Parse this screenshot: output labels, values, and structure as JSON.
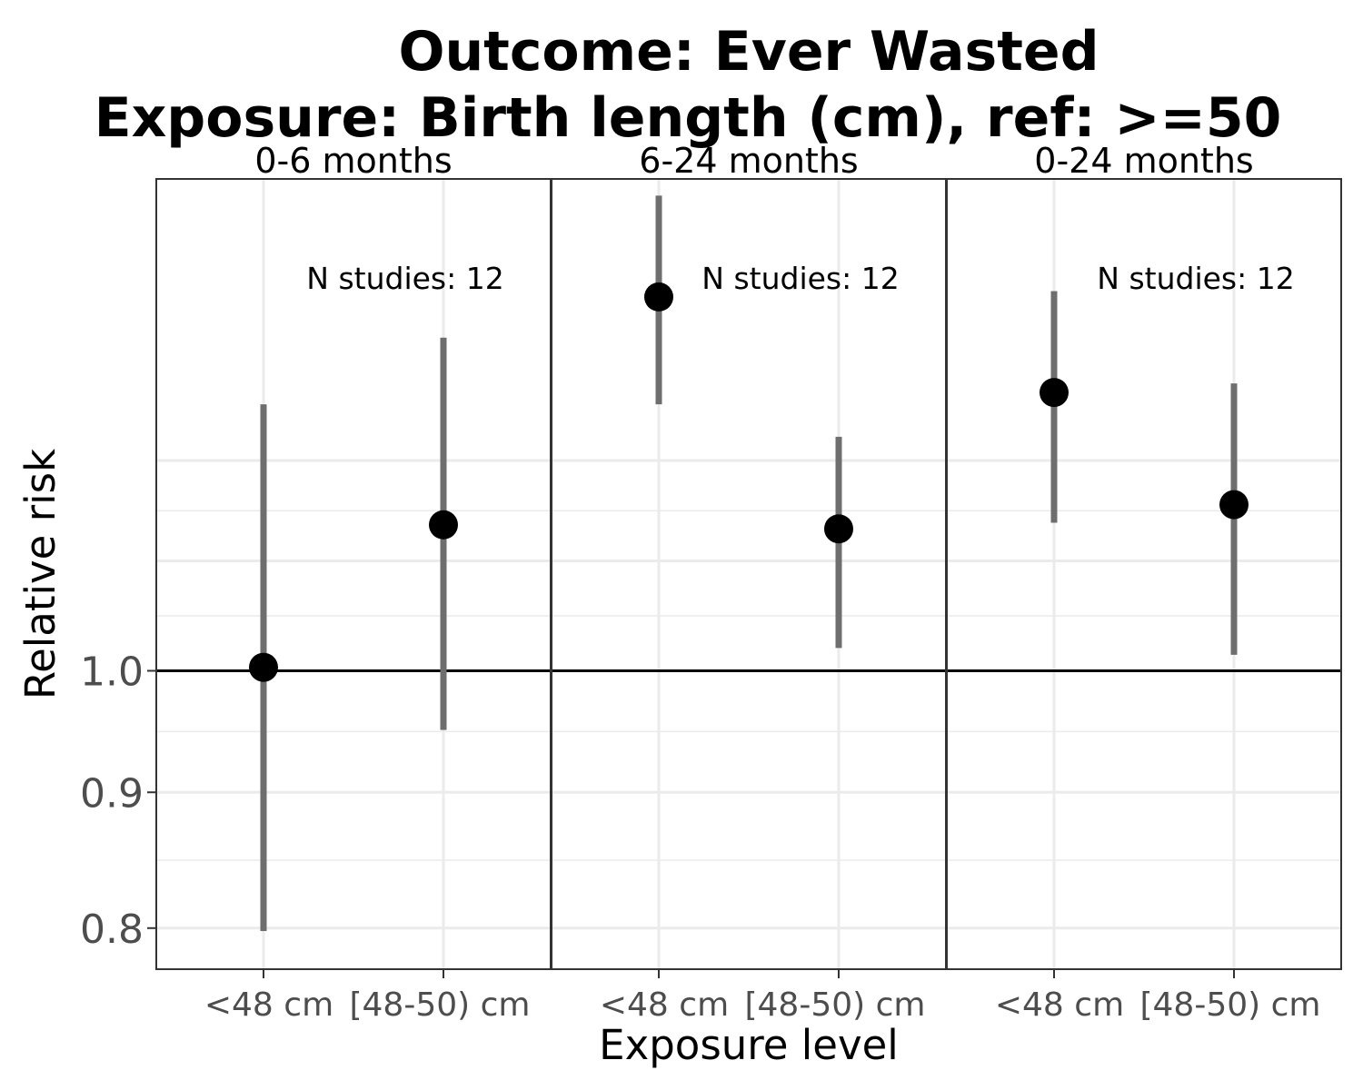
{
  "chart_data": {
    "type": "scatter",
    "title_line1": "Outcome: Ever Wasted",
    "title_line2": "Exposure: Birth length (cm), ref: >=50",
    "xlabel": "Exposure level",
    "ylabel": "Relative risk",
    "y_scale": "log",
    "ylim": [
      0.772,
      1.532
    ],
    "y_ticks": [
      {
        "value": 0.8,
        "label": "0.8"
      },
      {
        "value": 0.9,
        "label": "0.9"
      },
      {
        "value": 1.0,
        "label": "1.0"
      }
    ],
    "reference_line": 1.0,
    "categories": [
      "<48 cm",
      "[48-50) cm"
    ],
    "panels": [
      {
        "label": "0-6 months",
        "annotation": "N studies: 12",
        "points": [
          {
            "category": "<48 cm",
            "estimate": 1.003,
            "ci_lower": 0.798,
            "ci_upper": 1.26
          },
          {
            "category": "[48-50) cm",
            "estimate": 1.135,
            "ci_lower": 0.95,
            "ci_upper": 1.335
          }
        ]
      },
      {
        "label": "6-24 months",
        "annotation": "N studies: 12",
        "points": [
          {
            "category": "<48 cm",
            "estimate": 1.383,
            "ci_lower": 1.26,
            "ci_upper": 1.51
          },
          {
            "category": "[48-50) cm",
            "estimate": 1.131,
            "ci_lower": 1.02,
            "ci_upper": 1.225
          }
        ]
      },
      {
        "label": "0-24 months",
        "annotation": "N studies: 12",
        "points": [
          {
            "category": "<48 cm",
            "estimate": 1.273,
            "ci_lower": 1.137,
            "ci_upper": 1.39
          },
          {
            "category": "[48-50) cm",
            "estimate": 1.155,
            "ci_lower": 1.014,
            "ci_upper": 1.283
          }
        ]
      }
    ]
  }
}
